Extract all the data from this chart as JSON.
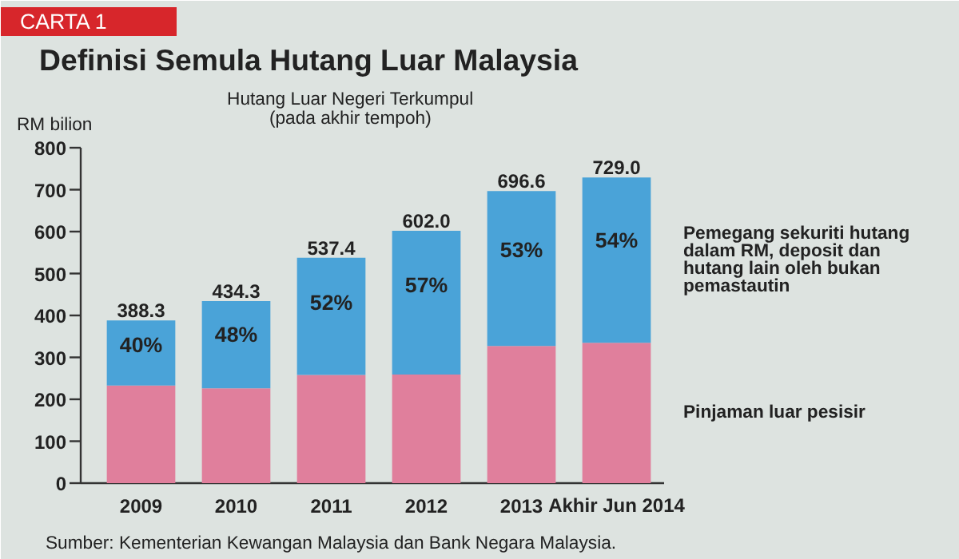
{
  "chart_data": {
    "type": "bar",
    "stacked": true,
    "title": "Definisi Semula Hutang Luar Malaysia",
    "subtitle": "Hutang Luar Negeri Terkumpul\n(pada akhir tempoh)",
    "ylabel": "RM bilion",
    "annotations": [
      "CARTA 1",
      "Sumber: Kementerian Kewangan Malaysia dan Bank Negara Malaysia.",
      "40%",
      "48%",
      "52%",
      "57%",
      "53%",
      "54%"
    ],
    "categories": [
      "2009",
      "2010",
      "2011",
      "2012",
      "2013",
      "Akhir Jun 2014"
    ],
    "series": [
      {
        "name": "Pinjaman luar pesisir",
        "color": "#e07f9c",
        "values": [
          233,
          226,
          258,
          259,
          327,
          335
        ]
      },
      {
        "name": "Pemegang sekuriti hutang dalam RM, deposit dan hutang lain oleh bukan pemastautin",
        "color": "#4aa3d8",
        "values": [
          155.3,
          208.3,
          279.4,
          343.0,
          369.6,
          394.0
        ]
      }
    ],
    "totals": [
      "388.3",
      "434.3",
      "537.4",
      "602.0",
      "696.6",
      "729.0"
    ],
    "ylim": [
      0,
      800
    ],
    "yticks": [
      0,
      100,
      200,
      300,
      400,
      500,
      600,
      700,
      800
    ],
    "grid": false
  }
}
